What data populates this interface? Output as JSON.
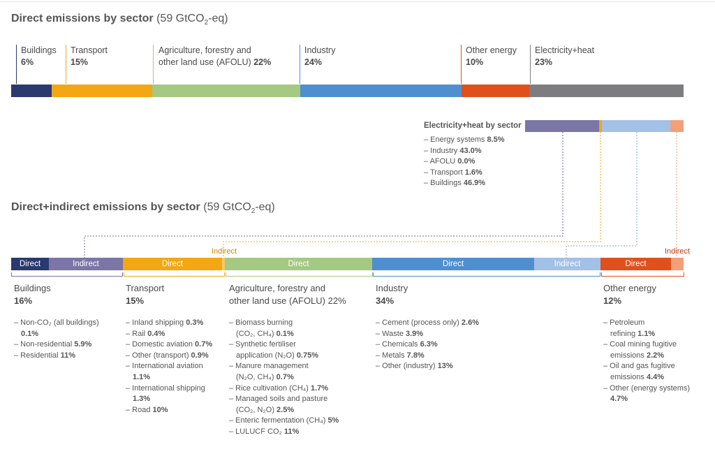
{
  "colors": {
    "buildings_direct": "#2a3a6e",
    "buildings_indirect": "#7b76a6",
    "transport": "#f3a712",
    "afolu": "#a5c882",
    "industry": "#4f8fd0",
    "industry_indirect": "#a3c0e6",
    "other_energy": "#e0501c",
    "other_energy_indirect": "#f2a07a",
    "electricity": "#7d7d80",
    "indirect_label": "#c98a10",
    "indirect_label_red": "#c23a10"
  },
  "top": {
    "title_bold": "Direct emissions by sector",
    "title_light": "(59 GtCO₂-eq)",
    "sectors": [
      {
        "name": "Buildings",
        "pct": "6%",
        "line2": ""
      },
      {
        "name": "Transport",
        "pct": "15%",
        "line2": ""
      },
      {
        "name": "Agriculture, forestry and",
        "line2": "other land use (AFOLU)",
        "pct": "22%"
      },
      {
        "name": "Industry",
        "pct": "24%",
        "line2": ""
      },
      {
        "name": "Other energy",
        "pct": "10%",
        "line2": ""
      },
      {
        "name": "Electricity+heat",
        "pct": "23%",
        "line2": ""
      }
    ]
  },
  "elec": {
    "title": "Electricity+heat by sector",
    "items": [
      {
        "label": "– Energy systems",
        "value": "8.5%"
      },
      {
        "label": "– Industry",
        "value": "43.0%"
      },
      {
        "label": "– AFOLU",
        "value": "0.0%"
      },
      {
        "label": "– Transport",
        "value": "1.6%"
      },
      {
        "label": "– Buildings",
        "value": "46.9%"
      }
    ]
  },
  "bottom": {
    "title_bold": "Direct+indirect emissions by sector",
    "title_light": "(59 GtCO₂-eq)",
    "seg_labels": {
      "direct": "Direct",
      "indirect": "Indirect"
    },
    "groups": [
      {
        "name": "Buildings",
        "name2": "",
        "pct": "16%",
        "items": [
          [
            "– Non-CO₂ (all buildings)",
            ""
          ],
          [
            "0.1%",
            "v"
          ],
          [
            "– Non-residential ",
            "5.9%"
          ],
          [
            "– Residential ",
            "11%"
          ]
        ]
      },
      {
        "name": "Transport",
        "name2": "",
        "pct": "15%",
        "items": [
          [
            "– Inland shipping ",
            "0.3%"
          ],
          [
            "– Rail ",
            "0.4%"
          ],
          [
            "– Domestic aviation ",
            "0.7%"
          ],
          [
            "– Other (transport) ",
            "0.9%"
          ],
          [
            "– International aviation",
            ""
          ],
          [
            "1.1%",
            "v"
          ],
          [
            "– International shipping",
            ""
          ],
          [
            "1.3%",
            "v"
          ],
          [
            "– Road ",
            "10%"
          ]
        ]
      },
      {
        "name": "Agriculture, forestry and",
        "name2": "other land use (AFOLU) 22%",
        "pct": "",
        "items": [
          [
            "– Biomass burning",
            ""
          ],
          [
            "(CO₂, CH₄) ",
            "0.1%",
            "i"
          ],
          [
            "– Synthetic fertiliser",
            ""
          ],
          [
            "application (N₂O) ",
            "0.75%",
            "i"
          ],
          [
            "– Manure management",
            ""
          ],
          [
            "(N₂O, CH₄) ",
            "0.7%",
            "i"
          ],
          [
            "– Rice cultivation (CH₄) ",
            "1.7%"
          ],
          [
            "– Managed soils and pasture",
            ""
          ],
          [
            "(CO₂, N₂O) ",
            "2.5%",
            "i"
          ],
          [
            "– Enteric fermentation (CH₄) ",
            "5%"
          ],
          [
            "– LULUCF CO₂ ",
            "11%"
          ]
        ]
      },
      {
        "name": "Industry",
        "name2": "",
        "pct": "34%",
        "items": [
          [
            "– Cement (process only) ",
            "2.6%"
          ],
          [
            "– Waste ",
            "3.9%"
          ],
          [
            "– Chemicals ",
            "6.3%"
          ],
          [
            "– Metals ",
            "7.8%"
          ],
          [
            "– Other (industry) ",
            "13%"
          ]
        ]
      },
      {
        "name": "Other energy",
        "name2": "",
        "pct": "12%",
        "items": [
          [
            "– Petroleum",
            ""
          ],
          [
            "refining ",
            "1.1%",
            "i"
          ],
          [
            "– Coal mining fugitive",
            ""
          ],
          [
            "emissions ",
            "2.2%",
            "i"
          ],
          [
            "– Oil and gas fugitive",
            ""
          ],
          [
            "emissions ",
            "4.4%",
            "i"
          ],
          [
            "– Other (energy systems)",
            ""
          ],
          [
            "4.7%",
            "v"
          ]
        ]
      }
    ]
  },
  "chart_data": [
    {
      "type": "bar",
      "title": "Direct emissions by sector (59 GtCO₂-eq)",
      "categories": [
        "Buildings",
        "Transport",
        "AFOLU",
        "Industry",
        "Other energy",
        "Electricity+heat"
      ],
      "values": [
        6,
        15,
        22,
        24,
        10,
        23
      ],
      "unit": "%"
    },
    {
      "type": "bar",
      "title": "Electricity+heat by sector",
      "categories": [
        "Buildings",
        "Transport",
        "AFOLU",
        "Industry",
        "Energy systems"
      ],
      "values": [
        46.9,
        1.6,
        0.0,
        43.0,
        8.5
      ],
      "unit": "%"
    },
    {
      "type": "bar",
      "title": "Direct+indirect emissions by sector (59 GtCO₂-eq)",
      "categories": [
        "Buildings",
        "Transport",
        "AFOLU",
        "Industry",
        "Other energy"
      ],
      "values": [
        16,
        15,
        22,
        34,
        12
      ],
      "unit": "%"
    }
  ]
}
